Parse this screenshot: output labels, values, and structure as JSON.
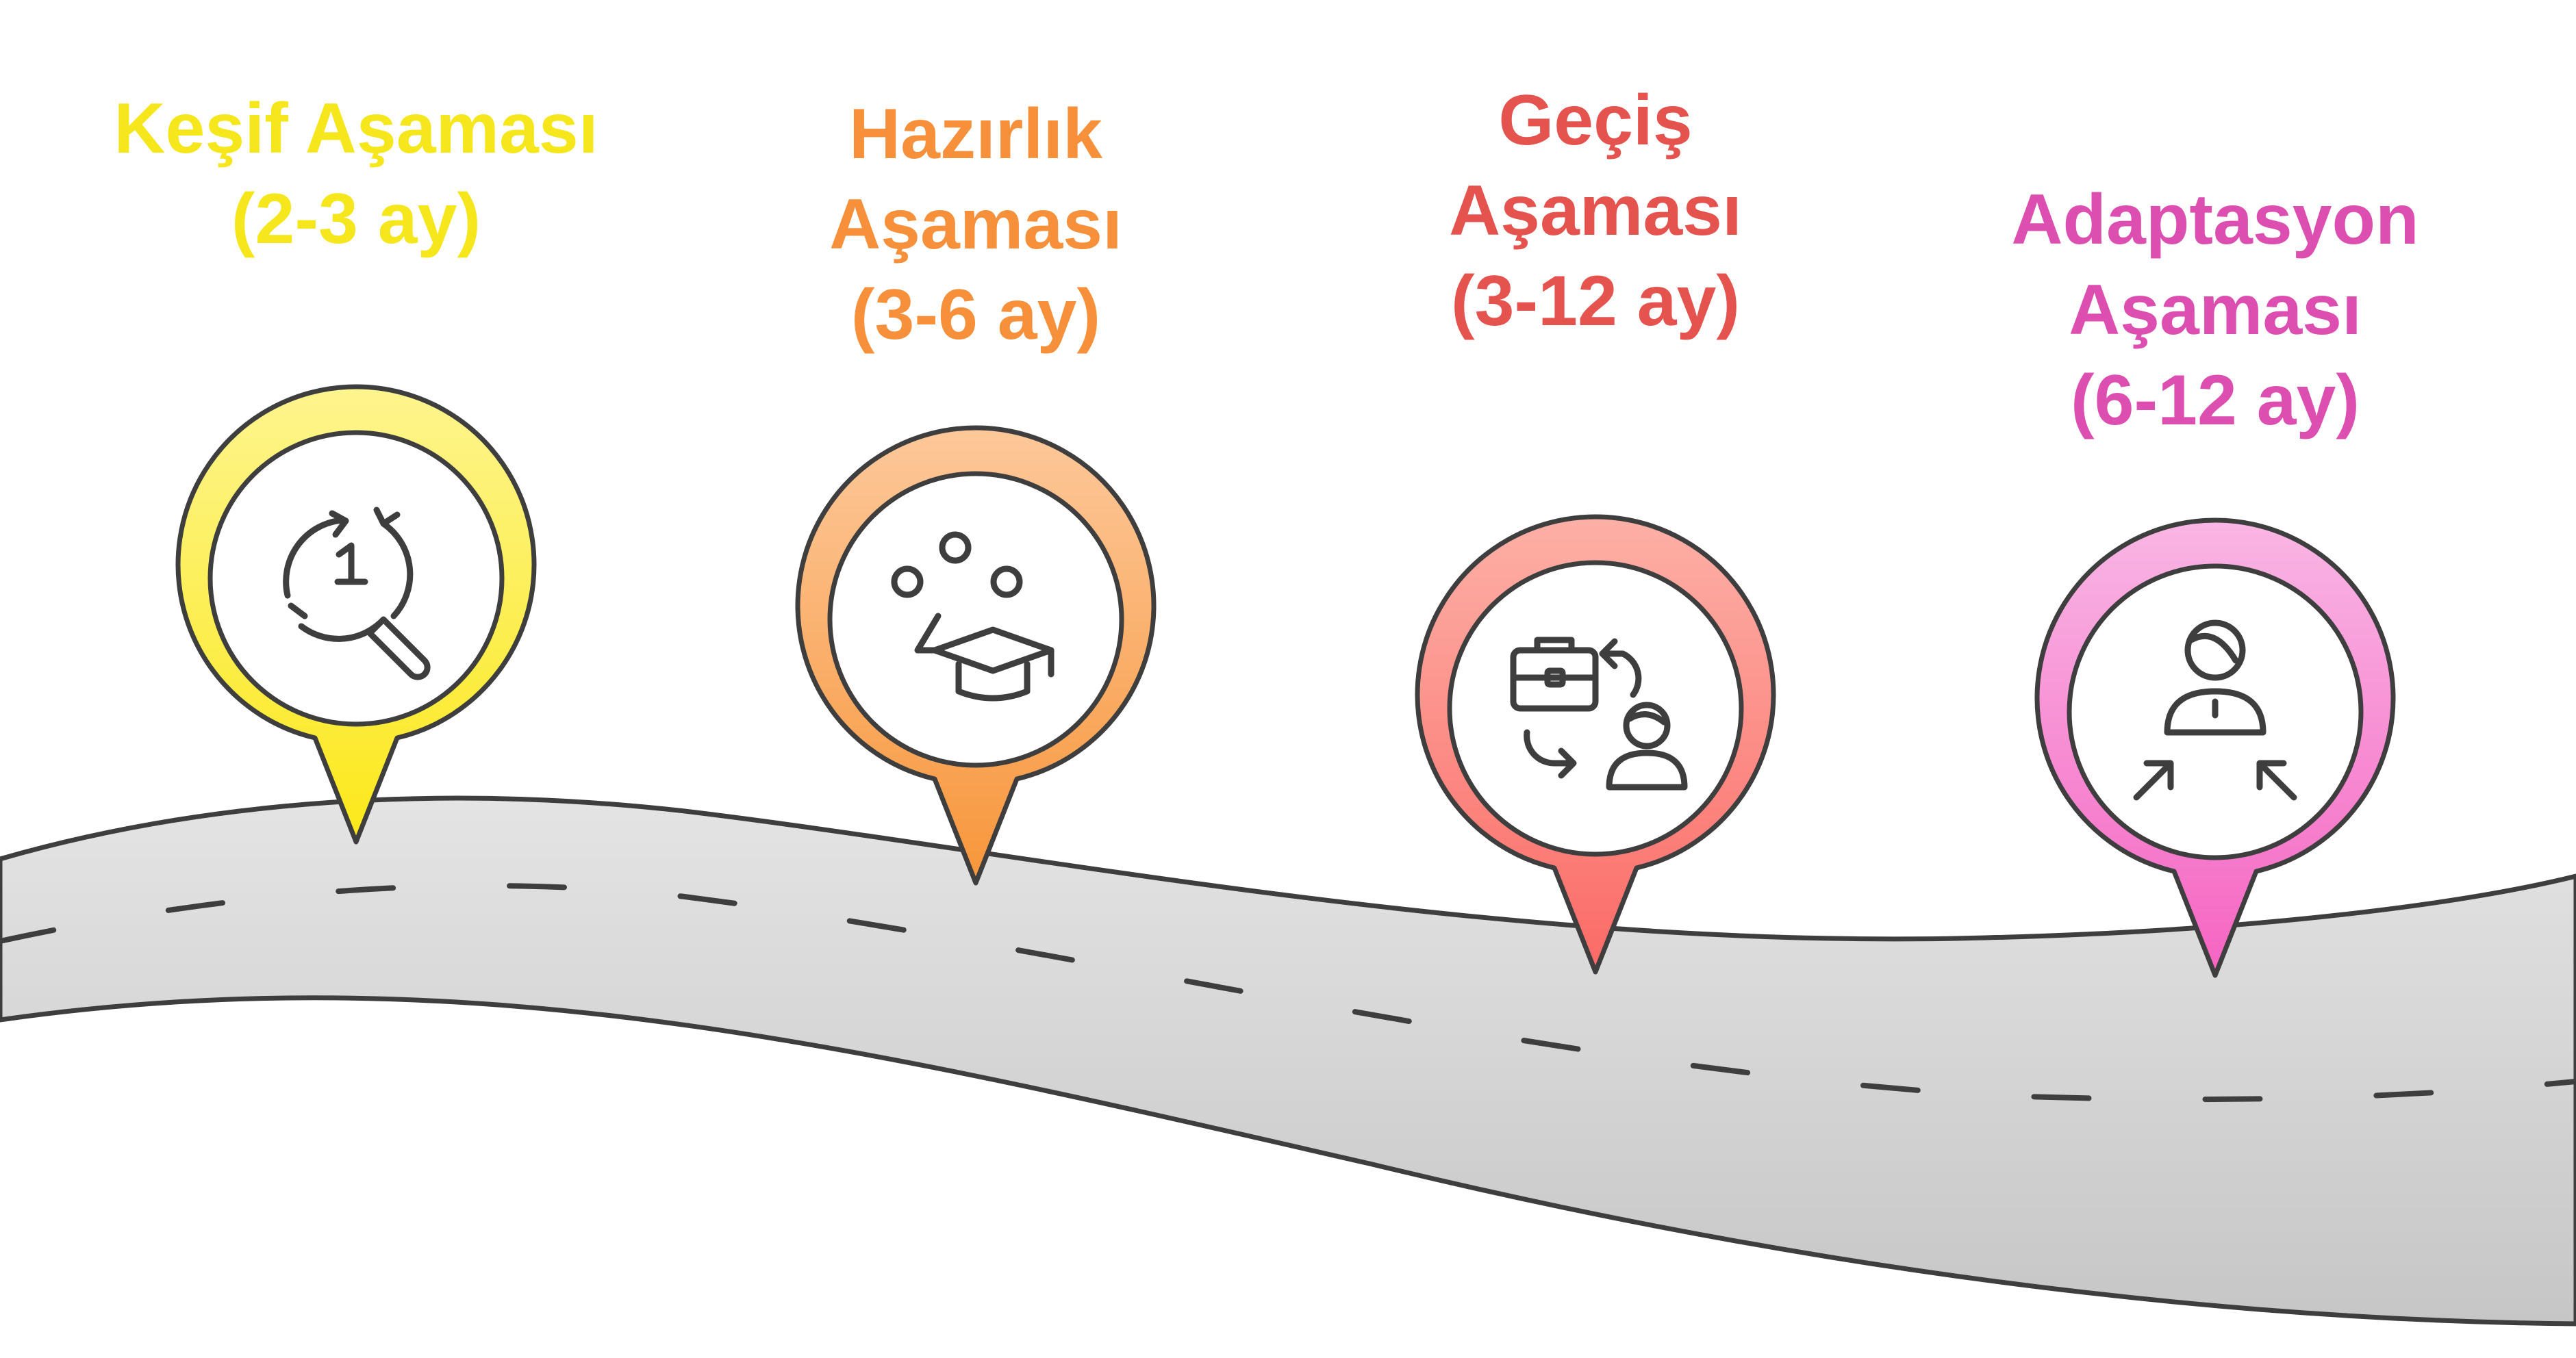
{
  "stages": [
    {
      "lines": [
        "Keşif Aşaması",
        "(2-3 ay)"
      ],
      "color": "#F6E61C",
      "pin_top": "#FDF58E",
      "pin_bottom": "#FCE819",
      "icon": "search-restart-icon"
    },
    {
      "lines": [
        "Hazırlık",
        "Aşaması",
        "(3-6 ay)"
      ],
      "color": "#F6903A",
      "pin_top": "#FDC89A",
      "pin_bottom": "#F7963A",
      "icon": "graduation-network-icon"
    },
    {
      "lines": [
        "Geçiş",
        "Aşaması",
        "(3-12 ay)"
      ],
      "color": "#E5534F",
      "pin_top": "#FDB0A6",
      "pin_bottom": "#FB6A66",
      "icon": "career-switch-icon"
    },
    {
      "lines": [
        "Adaptasyon",
        "Aşaması",
        "(6-12 ay)"
      ],
      "color": "#DC4FB0",
      "pin_top": "#F9B6E4",
      "pin_bottom": "#F564C2",
      "icon": "person-adapt-icon"
    }
  ],
  "colors": {
    "road": "#D3D3D3",
    "outline": "#3E3E3E",
    "background": "#FFFFFF"
  }
}
